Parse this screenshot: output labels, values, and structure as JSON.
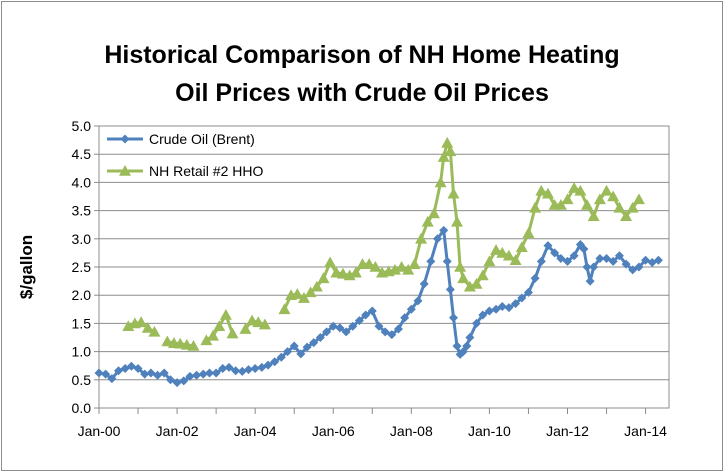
{
  "chart_data": {
    "type": "line",
    "title_line1": "Historical Comparison of NH Home Heating",
    "title_line2": "Oil Prices with Crude Oil Prices",
    "ylabel": "$/gallon",
    "xlabel": "",
    "ylim": [
      0,
      5
    ],
    "y_ticks": [
      "0.0",
      "0.5",
      "1.0",
      "1.5",
      "2.0",
      "2.5",
      "3.0",
      "3.5",
      "4.0",
      "4.5",
      "5.0"
    ],
    "x_ticks": [
      "Jan-00",
      "Jan-02",
      "Jan-04",
      "Jan-06",
      "Jan-08",
      "Jan-10",
      "Jan-12",
      "Jan-14"
    ],
    "x_range": [
      2000,
      2014.6
    ],
    "grid": "horizontal",
    "legend_position": "top-left",
    "series": [
      {
        "name": "Crude Oil (Brent)",
        "color": "#4f81bd",
        "marker": "diamond",
        "points": [
          [
            2000.0,
            0.62
          ],
          [
            2000.17,
            0.6
          ],
          [
            2000.33,
            0.52
          ],
          [
            2000.5,
            0.66
          ],
          [
            2000.67,
            0.7
          ],
          [
            2000.83,
            0.74
          ],
          [
            2001.0,
            0.7
          ],
          [
            2001.17,
            0.6
          ],
          [
            2001.33,
            0.62
          ],
          [
            2001.5,
            0.58
          ],
          [
            2001.67,
            0.62
          ],
          [
            2001.83,
            0.5
          ],
          [
            2002.0,
            0.45
          ],
          [
            2002.17,
            0.48
          ],
          [
            2002.33,
            0.56
          ],
          [
            2002.5,
            0.58
          ],
          [
            2002.67,
            0.6
          ],
          [
            2002.83,
            0.62
          ],
          [
            2003.0,
            0.62
          ],
          [
            2003.17,
            0.7
          ],
          [
            2003.33,
            0.72
          ],
          [
            2003.5,
            0.66
          ],
          [
            2003.67,
            0.65
          ],
          [
            2003.83,
            0.68
          ],
          [
            2004.0,
            0.7
          ],
          [
            2004.17,
            0.72
          ],
          [
            2004.33,
            0.76
          ],
          [
            2004.5,
            0.82
          ],
          [
            2004.67,
            0.9
          ],
          [
            2004.83,
            1.0
          ],
          [
            2005.0,
            1.1
          ],
          [
            2005.17,
            0.96
          ],
          [
            2005.33,
            1.08
          ],
          [
            2005.5,
            1.16
          ],
          [
            2005.67,
            1.25
          ],
          [
            2005.83,
            1.35
          ],
          [
            2006.0,
            1.45
          ],
          [
            2006.17,
            1.42
          ],
          [
            2006.33,
            1.35
          ],
          [
            2006.5,
            1.45
          ],
          [
            2006.67,
            1.55
          ],
          [
            2006.83,
            1.65
          ],
          [
            2007.0,
            1.72
          ],
          [
            2007.17,
            1.45
          ],
          [
            2007.33,
            1.35
          ],
          [
            2007.5,
            1.3
          ],
          [
            2007.67,
            1.4
          ],
          [
            2007.83,
            1.6
          ],
          [
            2008.0,
            1.75
          ],
          [
            2008.17,
            1.9
          ],
          [
            2008.33,
            2.2
          ],
          [
            2008.5,
            2.6
          ],
          [
            2008.67,
            3.0
          ],
          [
            2008.83,
            3.15
          ],
          [
            2008.92,
            2.6
          ],
          [
            2009.0,
            2.1
          ],
          [
            2009.08,
            1.6
          ],
          [
            2009.17,
            1.1
          ],
          [
            2009.25,
            0.95
          ],
          [
            2009.33,
            1.0
          ],
          [
            2009.42,
            1.1
          ],
          [
            2009.5,
            1.25
          ],
          [
            2009.67,
            1.5
          ],
          [
            2009.83,
            1.65
          ],
          [
            2010.0,
            1.72
          ],
          [
            2010.17,
            1.75
          ],
          [
            2010.33,
            1.8
          ],
          [
            2010.5,
            1.78
          ],
          [
            2010.67,
            1.85
          ],
          [
            2010.83,
            1.95
          ],
          [
            2011.0,
            2.05
          ],
          [
            2011.17,
            2.3
          ],
          [
            2011.33,
            2.6
          ],
          [
            2011.5,
            2.88
          ],
          [
            2011.67,
            2.75
          ],
          [
            2011.83,
            2.65
          ],
          [
            2012.0,
            2.6
          ],
          [
            2012.17,
            2.7
          ],
          [
            2012.33,
            2.9
          ],
          [
            2012.42,
            2.82
          ],
          [
            2012.5,
            2.5
          ],
          [
            2012.58,
            2.25
          ],
          [
            2012.67,
            2.5
          ],
          [
            2012.83,
            2.65
          ],
          [
            2013.0,
            2.65
          ],
          [
            2013.17,
            2.6
          ],
          [
            2013.33,
            2.7
          ],
          [
            2013.5,
            2.55
          ],
          [
            2013.67,
            2.45
          ],
          [
            2013.83,
            2.5
          ],
          [
            2014.0,
            2.62
          ],
          [
            2014.17,
            2.58
          ],
          [
            2014.33,
            2.62
          ]
        ]
      },
      {
        "name": "NH Retail #2 HHO",
        "color": "#9bbb59",
        "marker": "triangle",
        "points": [
          [
            2000.75,
            1.45
          ],
          [
            2000.92,
            1.5
          ],
          [
            2001.08,
            1.52
          ],
          [
            2001.25,
            1.42
          ],
          [
            2001.42,
            1.35
          ],
          [
            null,
            null
          ],
          [
            2001.75,
            1.18
          ],
          [
            2001.92,
            1.15
          ],
          [
            2002.08,
            1.14
          ],
          [
            2002.25,
            1.12
          ],
          [
            2002.42,
            1.1
          ],
          [
            null,
            null
          ],
          [
            2002.75,
            1.2
          ],
          [
            2002.92,
            1.28
          ],
          [
            2003.08,
            1.45
          ],
          [
            2003.25,
            1.65
          ],
          [
            2003.42,
            1.32
          ],
          [
            null,
            null
          ],
          [
            2003.75,
            1.4
          ],
          [
            2003.92,
            1.55
          ],
          [
            2004.08,
            1.52
          ],
          [
            2004.25,
            1.48
          ],
          [
            null,
            null
          ],
          [
            2004.75,
            1.75
          ],
          [
            2004.92,
            2.0
          ],
          [
            2005.08,
            2.02
          ],
          [
            2005.25,
            1.95
          ],
          [
            2005.42,
            2.05
          ],
          [
            2005.58,
            2.15
          ],
          [
            2005.75,
            2.3
          ],
          [
            2005.92,
            2.58
          ],
          [
            2006.08,
            2.4
          ],
          [
            2006.25,
            2.38
          ],
          [
            2006.42,
            2.35
          ],
          [
            2006.58,
            2.4
          ],
          [
            2006.75,
            2.55
          ],
          [
            2006.92,
            2.55
          ],
          [
            2007.08,
            2.5
          ],
          [
            2007.25,
            2.4
          ],
          [
            2007.42,
            2.42
          ],
          [
            2007.58,
            2.45
          ],
          [
            2007.75,
            2.5
          ],
          [
            2007.92,
            2.45
          ],
          [
            2008.08,
            2.55
          ],
          [
            2008.25,
            3.0
          ],
          [
            2008.42,
            3.3
          ],
          [
            2008.58,
            3.45
          ],
          [
            2008.75,
            4.0
          ],
          [
            2008.83,
            4.45
          ],
          [
            2008.92,
            4.7
          ],
          [
            2009.0,
            4.55
          ],
          [
            2009.08,
            3.8
          ],
          [
            2009.17,
            3.3
          ],
          [
            2009.25,
            2.5
          ],
          [
            2009.33,
            2.3
          ],
          [
            2009.5,
            2.15
          ],
          [
            2009.67,
            2.2
          ],
          [
            2009.83,
            2.35
          ],
          [
            2010.0,
            2.6
          ],
          [
            2010.17,
            2.8
          ],
          [
            2010.33,
            2.75
          ],
          [
            2010.5,
            2.7
          ],
          [
            2010.67,
            2.62
          ],
          [
            2010.83,
            2.85
          ],
          [
            2011.0,
            3.1
          ],
          [
            2011.17,
            3.55
          ],
          [
            2011.33,
            3.85
          ],
          [
            2011.5,
            3.8
          ],
          [
            2011.67,
            3.6
          ],
          [
            2011.83,
            3.6
          ],
          [
            2012.0,
            3.7
          ],
          [
            2012.17,
            3.9
          ],
          [
            2012.33,
            3.85
          ],
          [
            2012.5,
            3.6
          ],
          [
            2012.67,
            3.4
          ],
          [
            2012.83,
            3.7
          ],
          [
            2013.0,
            3.85
          ],
          [
            2013.17,
            3.75
          ],
          [
            2013.33,
            3.55
          ],
          [
            2013.5,
            3.4
          ],
          [
            2013.67,
            3.55
          ],
          [
            2013.83,
            3.7
          ]
        ]
      }
    ]
  }
}
